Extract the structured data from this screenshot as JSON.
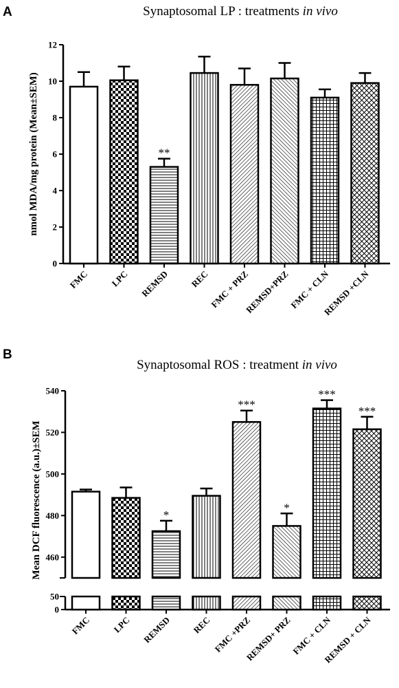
{
  "chart_data": [
    {
      "type": "bar",
      "panel": "A",
      "title": "Synaptosomal LP : treatments ",
      "title_italic": "in vivo",
      "ylabel": "nmol MDA/mg protein (Mean±SEM)",
      "ylim": [
        0,
        12
      ],
      "yticks": [
        "0",
        "2",
        "4",
        "6",
        "8",
        "10",
        "12"
      ],
      "categories": [
        "FMC",
        "LPC",
        "REMSD",
        "REC",
        "FMC + PRZ",
        "REMSD+PRZ",
        "FMC + CLN",
        "REMSD +CLN"
      ],
      "values": [
        9.7,
        10.05,
        5.3,
        10.45,
        9.8,
        10.15,
        9.1,
        9.9
      ],
      "errors": [
        0.8,
        0.75,
        0.45,
        0.9,
        0.9,
        0.85,
        0.45,
        0.55
      ],
      "annotations": [
        "",
        "",
        "**",
        "",
        "",
        "",
        "",
        ""
      ],
      "patterns": [
        "none",
        "checker",
        "hlines",
        "vlines",
        "diag-right",
        "diag-left",
        "grid",
        "crosshatch"
      ]
    },
    {
      "type": "bar",
      "panel": "B",
      "title": "Synaptosomal ROS : treatment ",
      "title_italic": "in vivo",
      "ylabel": "Mean DCF fluorescence (a.u.)±SEM",
      "ylim_upper": [
        450,
        540
      ],
      "ylim_lower": [
        0,
        50
      ],
      "yticks_upper": [
        "460",
        "480",
        "500",
        "520",
        "540"
      ],
      "yticks_lower": [
        "0",
        "50"
      ],
      "categories": [
        "FMC",
        "LPC",
        "REMSD",
        "REC",
        "FMC +PRZ",
        "REMSD+ PRZ",
        "FMC + CLN",
        "REMSD + CLN"
      ],
      "values": [
        491.5,
        488.5,
        472.5,
        489.5,
        525,
        475,
        531.5,
        521.5
      ],
      "errors": [
        1.0,
        5.0,
        5.0,
        3.5,
        5.5,
        6.0,
        4.0,
        6.0
      ],
      "annotations": [
        "",
        "",
        "*",
        "",
        "***",
        "*",
        "***",
        "***"
      ],
      "patterns": [
        "none",
        "checker",
        "hlines",
        "vlines",
        "diag-right",
        "diag-left",
        "grid",
        "crosshatch"
      ]
    }
  ]
}
